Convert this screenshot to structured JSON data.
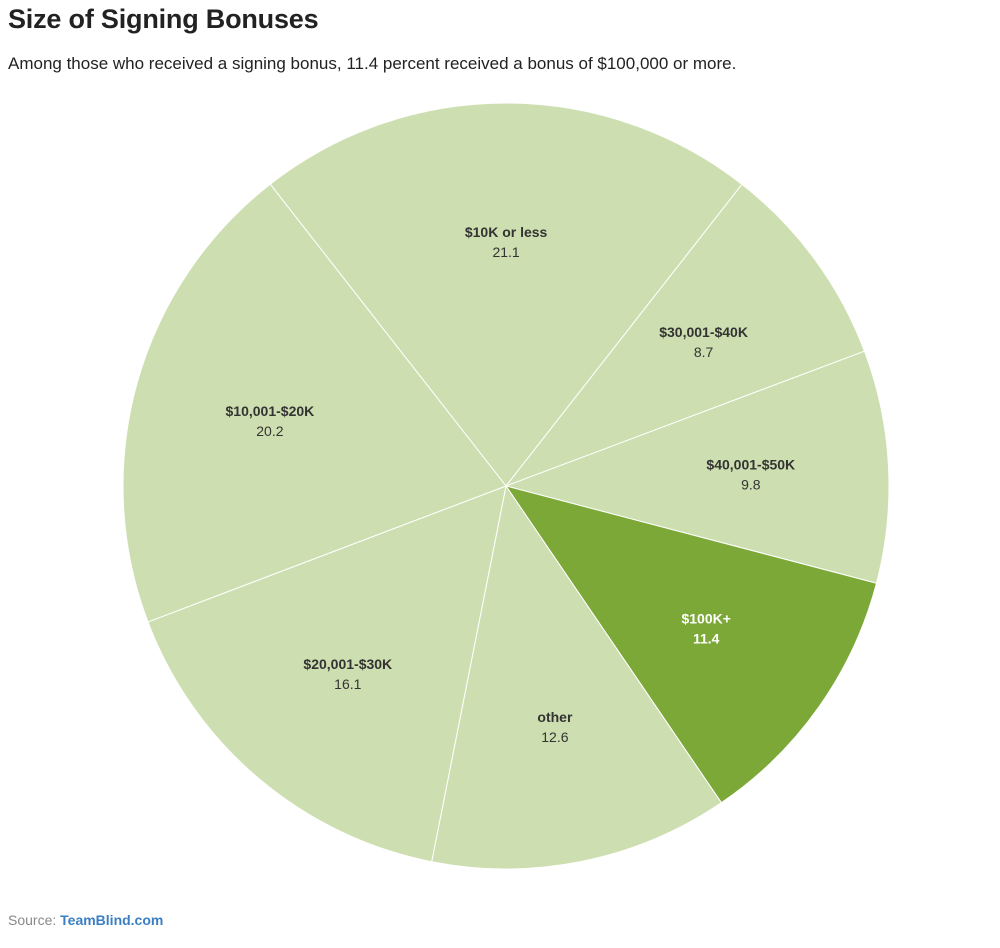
{
  "title": "Size of Signing Bonuses",
  "subtitle": "Among those who received a signing bonus, 11.4 percent received a bonus of $100,000 or more.",
  "source": {
    "prefix": "Source: ",
    "link_text": "TeamBlind.com"
  },
  "colors": {
    "default_slice": "#cddfb0",
    "highlight_slice": "#7ca838",
    "slice_border": "#ffffff",
    "label_default": "#333333",
    "label_highlight": "#ffffff"
  },
  "chart_data": {
    "type": "pie",
    "title": "Size of Signing Bonuses",
    "start_angle_deg": -38,
    "direction": "clockwise",
    "slices": [
      {
        "label": "$10K or less",
        "value": 21.1,
        "highlight": false
      },
      {
        "label": "$30,001-$40K",
        "value": 8.7,
        "highlight": false
      },
      {
        "label": "$40,001-$50K",
        "value": 9.8,
        "highlight": false
      },
      {
        "label": "$100K+",
        "value": 11.4,
        "highlight": true
      },
      {
        "label": "other",
        "value": 12.6,
        "highlight": false
      },
      {
        "label": "$20,001-$30K",
        "value": 16.1,
        "highlight": false
      },
      {
        "label": "$10,001-$20K",
        "value": 20.2,
        "highlight": false
      }
    ]
  }
}
